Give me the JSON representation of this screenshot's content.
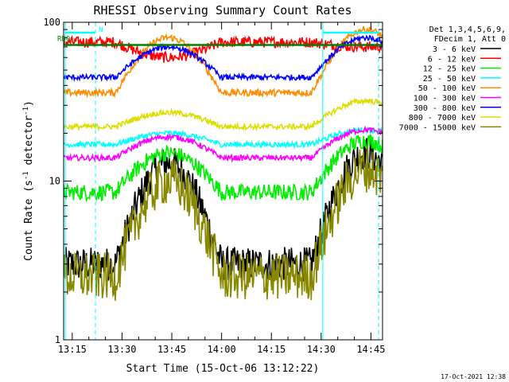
{
  "chart_data": {
    "type": "line",
    "title": "RHESSI Observing Summary Count Rates",
    "xlabel": "Start Time (15-Oct-06 13:12:22)",
    "ylabel_main": "Count Rate (s",
    "ylabel_sup": "-1",
    "ylabel_rest": " detector",
    "ylabel_end": ")",
    "y_scale": "log",
    "ylim": [
      1,
      100
    ],
    "xlim_minutes_after_13_00": [
      12.4,
      50.5
    ],
    "x_ticks": [
      {
        "t": 15,
        "label": "13:15"
      },
      {
        "t": 30,
        "label": "13:30"
      },
      {
        "t": 45,
        "label": "13:45"
      },
      {
        "t": 60,
        "label": "14:00"
      },
      {
        "t": 75,
        "label": "14:15"
      },
      {
        "t": 90,
        "label": "14:30"
      },
      {
        "t": 105,
        "label": "14:45"
      }
    ],
    "y_ticks": [
      {
        "v": 1,
        "label": "1"
      },
      {
        "v": 10,
        "label": "10"
      },
      {
        "v": 100,
        "label": "100"
      }
    ],
    "legend_header": [
      "Det 1,3,4,5,6,9,",
      "FDecim 1, Att 0"
    ],
    "legend_position": "right",
    "series": [
      {
        "name": "3 - 6 keV",
        "color": "#000000",
        "night": 3.0,
        "day": 13.0,
        "end_day": 15.0,
        "noise": 0.25
      },
      {
        "name": "6 - 12 keV",
        "color": "#ff0000",
        "night": 75.0,
        "day": 60.0,
        "end_day": 70.0,
        "noise": 0.08
      },
      {
        "name": "12 - 25 keV",
        "color": "#00ee00",
        "night": 8.5,
        "day": 15.0,
        "end_day": 18.0,
        "noise": 0.12
      },
      {
        "name": "25 - 50 keV",
        "color": "#00ffff",
        "night": 17.0,
        "day": 20.0,
        "end_day": 21.0,
        "noise": 0.04
      },
      {
        "name": "50 - 100 keV",
        "color": "#ff8c00",
        "night": 36.0,
        "day": 80.0,
        "end_day": 90.0,
        "noise": 0.05
      },
      {
        "name": "100 - 300 keV",
        "color": "#ff00ff",
        "night": 14.0,
        "day": 19.0,
        "end_day": 21.0,
        "noise": 0.04
      },
      {
        "name": "300 - 800 keV",
        "color": "#0000ff",
        "night": 45.0,
        "day": 70.0,
        "end_day": 80.0,
        "noise": 0.04
      },
      {
        "name": "800 - 7000 keV",
        "color": "#dddd00",
        "night": 22.0,
        "day": 27.0,
        "end_day": 32.0,
        "noise": 0.04
      },
      {
        "name": "7000 - 15000 keV",
        "color": "#888800",
        "night": 2.5,
        "day": 10.0,
        "end_day": 12.0,
        "noise": 0.35
      }
    ],
    "annotations": {
      "saa_flag_label": "RD0",
      "saa_flag_value": 72,
      "saa_flag_color": "#008000",
      "night_flag_label": "N",
      "night_flag_color": "#00ffff",
      "vertical_markers": [
        {
          "t": 12.9,
          "style": "solid",
          "color": "#00ffff"
        },
        {
          "t": 22.0,
          "style": "dashed",
          "color": "#00ffff"
        },
        {
          "t": 90.5,
          "style": "solid",
          "color": "#00ffff"
        },
        {
          "t": 107.3,
          "style": "dashed",
          "color": "#00ffff"
        }
      ]
    }
  },
  "footer": {
    "date_stamp": "17-Oct-2021 12:38"
  }
}
